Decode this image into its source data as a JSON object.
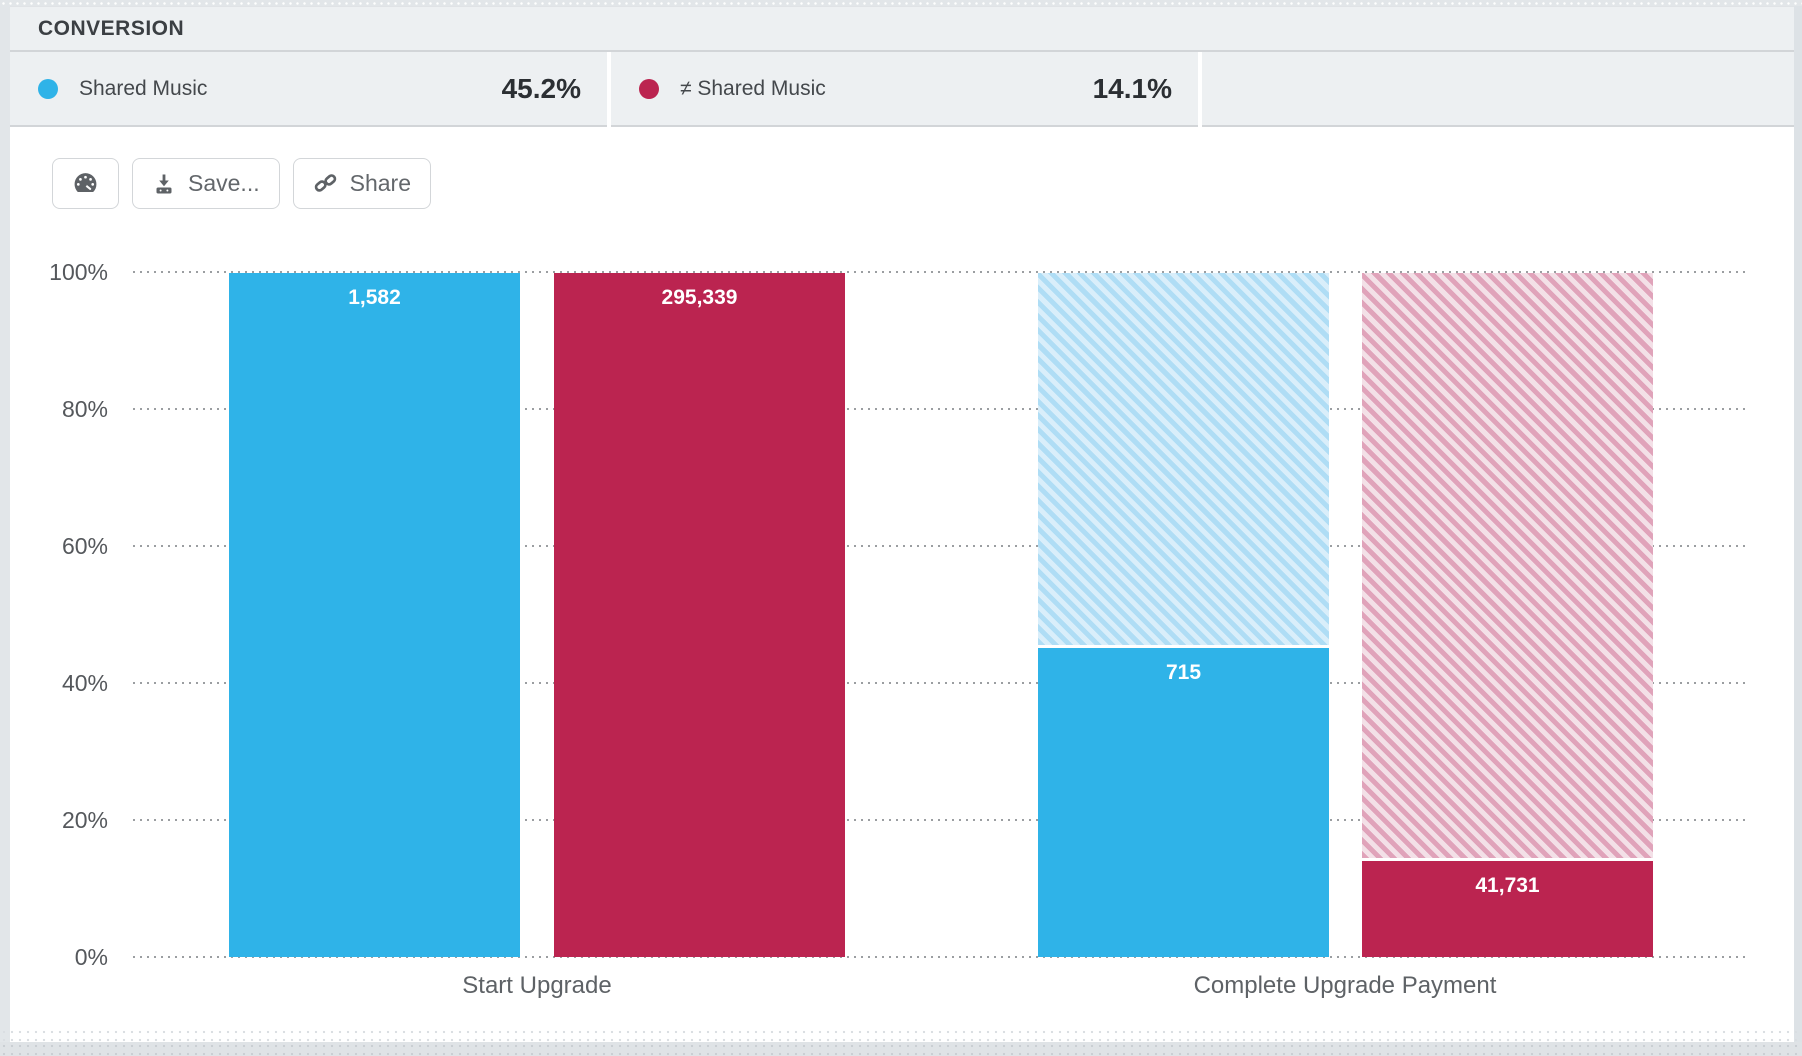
{
  "header": {
    "title": "CONVERSION"
  },
  "legend": {
    "items": [
      {
        "label": "Shared Music",
        "value": "45.2%",
        "color": "#2FB3E8"
      },
      {
        "label": "≠ Shared Music",
        "value": "14.1%",
        "color": "#BB2450"
      }
    ]
  },
  "toolbar": {
    "gauge_button_icon": "gauge-icon",
    "save_label": "Save...",
    "share_label": "Share"
  },
  "chart_data": {
    "type": "bar",
    "title": "CONVERSION",
    "categories": [
      "Start Upgrade",
      "Complete Upgrade Payment"
    ],
    "series": [
      {
        "name": "Shared Music",
        "color": "#2FB3E8",
        "hatch_bg": "#D9EEFA",
        "hatch_stripe": "#AFDDF5",
        "counts": [
          1582,
          715
        ],
        "count_labels": [
          "1,582",
          "715"
        ],
        "percents": [
          100,
          45.2
        ],
        "overall_conversion": "45.2%"
      },
      {
        "name": "≠ Shared Music",
        "color": "#BB2450",
        "hatch_bg": "#F3E0E7",
        "hatch_stripe": "#E0A3BA",
        "counts": [
          295339,
          41731
        ],
        "count_labels": [
          "295,339",
          "41,731"
        ],
        "percents": [
          100,
          14.1
        ],
        "overall_conversion": "14.1%"
      }
    ],
    "xlabel": "",
    "ylabel": "",
    "y_ticks": [
      "100%",
      "80%",
      "60%",
      "40%",
      "20%",
      "0%"
    ],
    "ylim": [
      0,
      100
    ],
    "grid": "horizontal-dotted",
    "legend_position": "top",
    "unfilled_style": "diagonal hatch above each bar shows remainder up to 100%"
  }
}
